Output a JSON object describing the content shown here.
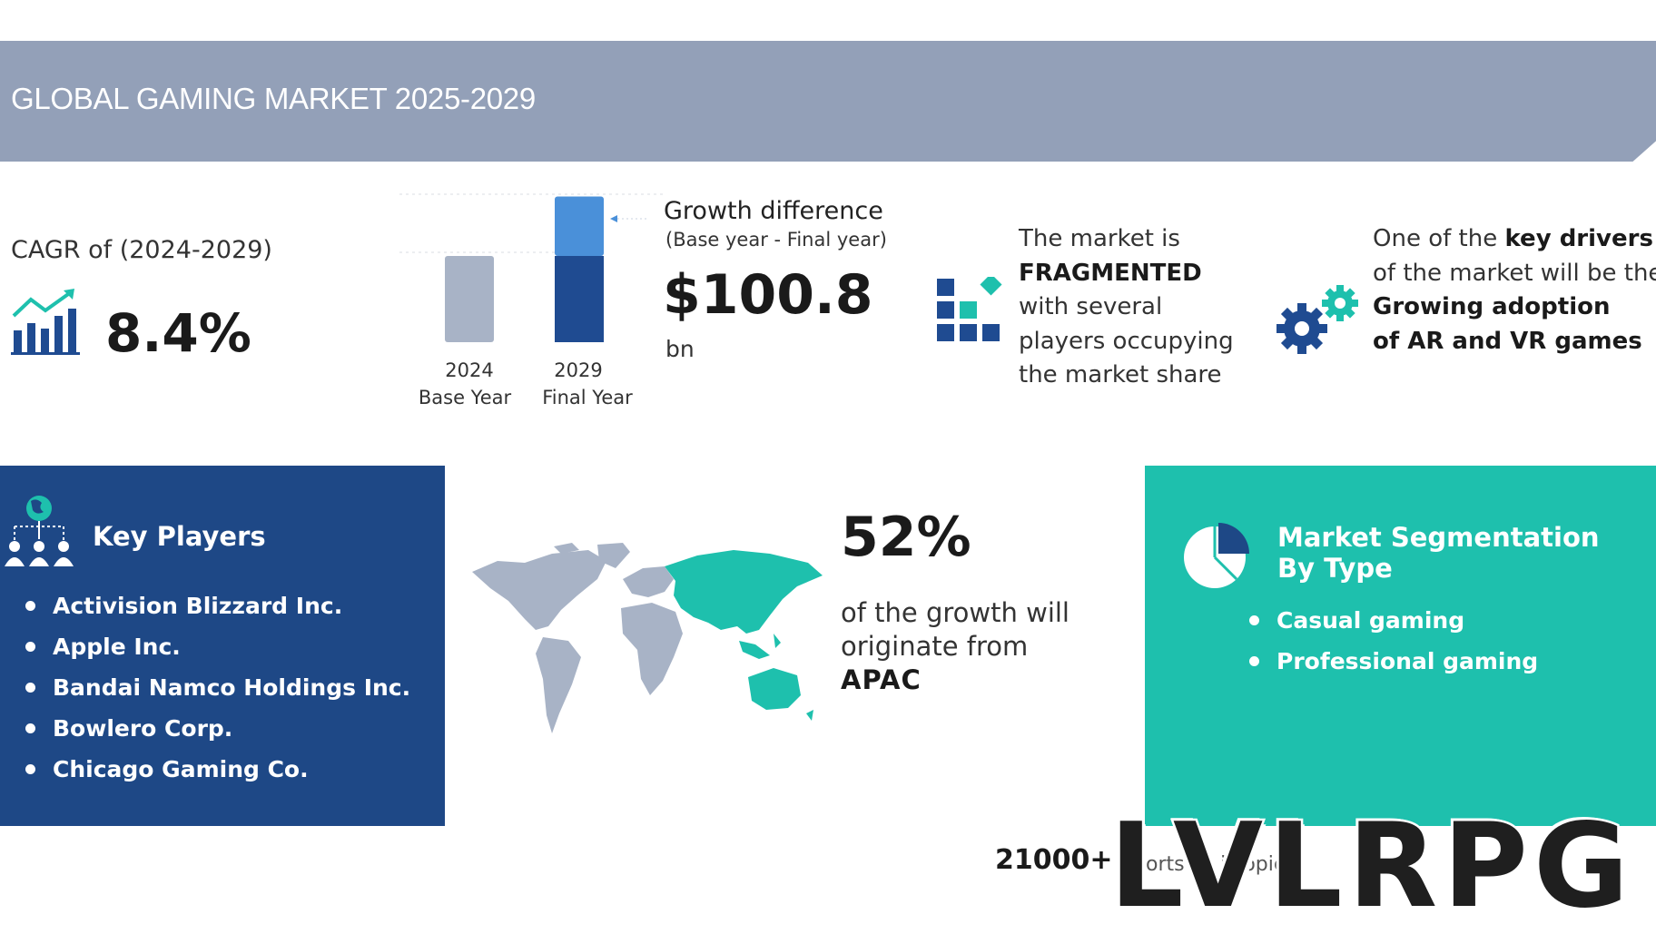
{
  "header": {
    "title": "GLOBAL GAMING MARKET 2025-2029"
  },
  "cagr": {
    "label": "CAGR of (2024-2029)",
    "value": "8.4%",
    "icon": "growth-chart-icon"
  },
  "growth": {
    "title": "Growth difference",
    "subtitle": "(Base year - Final year)",
    "value": "$100.8",
    "unit": "bn"
  },
  "chart_data": {
    "type": "bar",
    "categories": [
      "2024",
      "2029"
    ],
    "category_sublabels": [
      "Base Year",
      "Final Year"
    ],
    "series": [
      {
        "values": [
          1,
          1
        ]
      },
      {
        "values": [
          0,
          0.69
        ]
      }
    ],
    "stacked": true,
    "growth_difference": "$100.8 bn",
    "colors": {
      "base": "#a8b3c6",
      "final_base": "#1f4b91",
      "growth": "#4a90d9"
    }
  },
  "fragmented": {
    "line1": "The market is",
    "line2": "FRAGMENTED",
    "line3": "with several",
    "line4": "players occupying",
    "line5": "the market share",
    "icon": "fragmented-blocks-icon"
  },
  "drivers": {
    "line1_prefix": "One of the ",
    "line1_bold": "key drivers",
    "line2": "of the market will be the",
    "line3": "Growing adoption",
    "line4": "of AR and VR games",
    "icon": "gears-icon"
  },
  "players": {
    "title": "Key Players",
    "icon": "key-players-icon",
    "items": [
      "Activision Blizzard Inc.",
      "Apple Inc.",
      "Bandai Namco Holdings Inc.",
      "Bowlero Corp.",
      "Chicago Gaming Co."
    ]
  },
  "region": {
    "percent": "52%",
    "line1": "of the growth will",
    "line2": "originate from",
    "name": "APAC",
    "icon": "world-map-icon"
  },
  "segmentation": {
    "title": "Market Segmentation By Type",
    "icon": "pie-chart-icon",
    "items": [
      "Casual gaming",
      "Professional gaming"
    ]
  },
  "footer": {
    "count": "21000+",
    "hidden_text": "orts co     ic    opics"
  },
  "watermark": {
    "text": "LVLRPG"
  },
  "colors": {
    "banner": "#93a0b8",
    "navy": "#1e4886",
    "teal": "#1ec0ad",
    "accent_blue": "#4a90d9"
  }
}
